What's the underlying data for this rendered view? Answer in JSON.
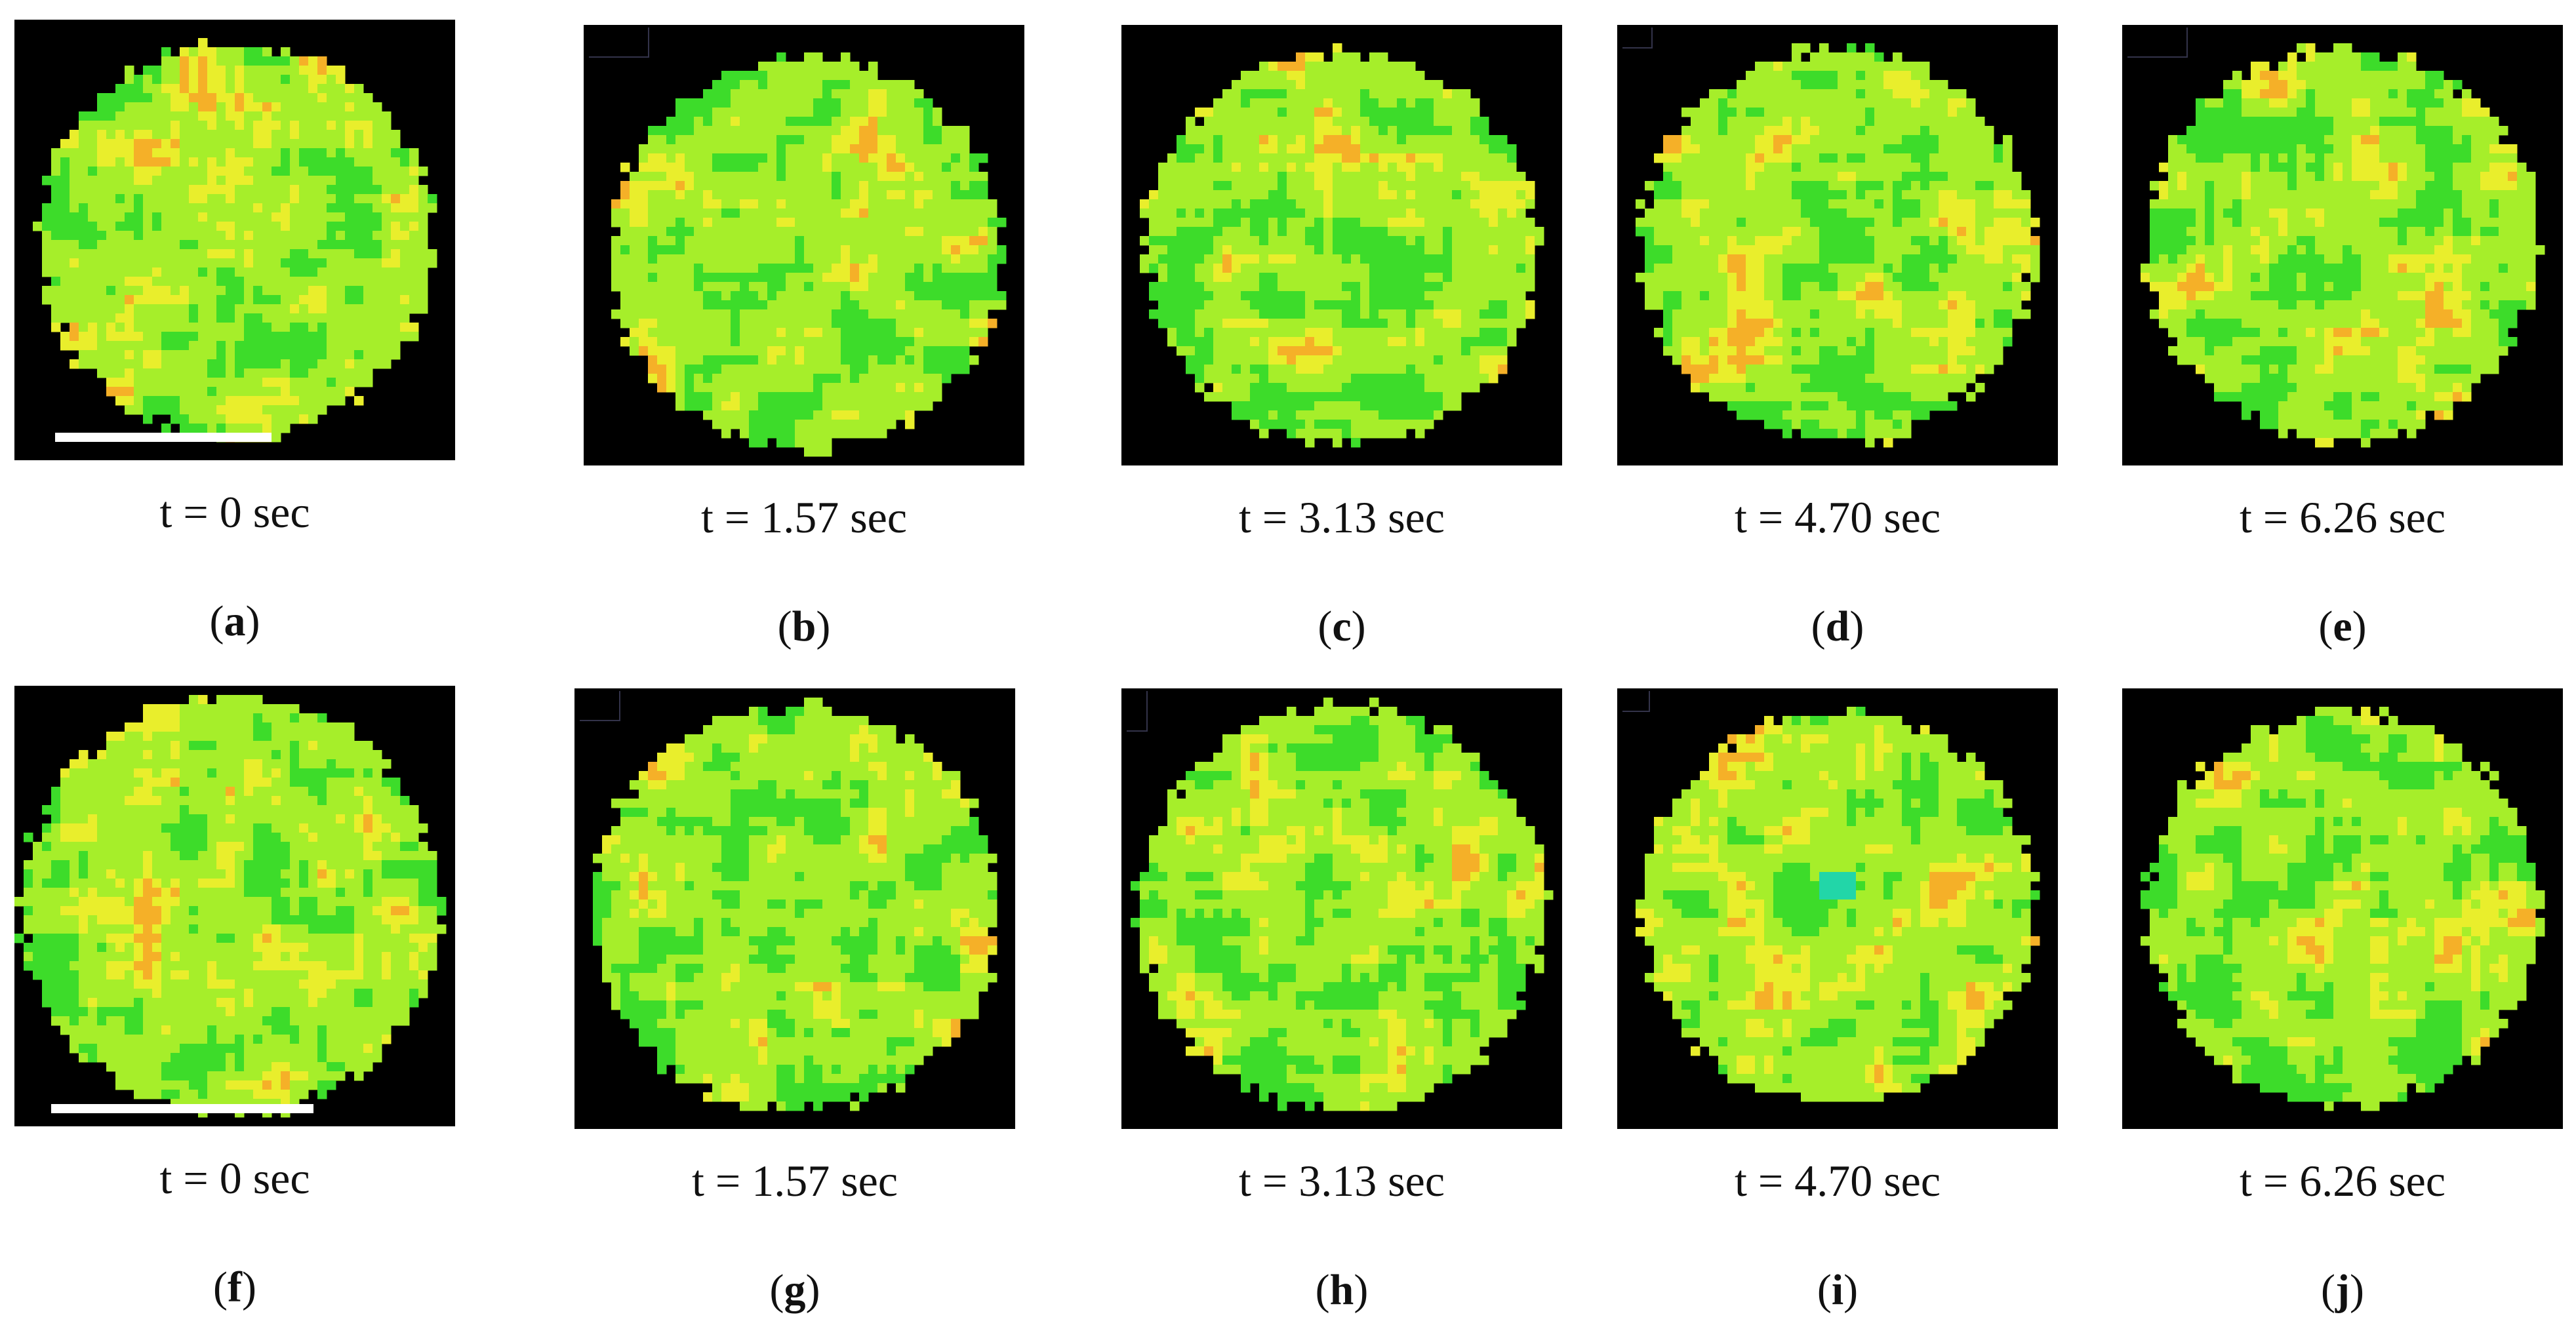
{
  "figure": {
    "panels": [
      {
        "id": "a",
        "time_label": "t = 0 sec",
        "letter": "a",
        "scale_bar": true
      },
      {
        "id": "b",
        "time_label": "t = 1.57 sec",
        "letter": "b",
        "scale_bar": false
      },
      {
        "id": "c",
        "time_label": "t = 3.13 sec",
        "letter": "c",
        "scale_bar": false
      },
      {
        "id": "d",
        "time_label": "t = 4.70 sec",
        "letter": "d",
        "scale_bar": false
      },
      {
        "id": "e",
        "time_label": "t = 6.26 sec",
        "letter": "e",
        "scale_bar": false
      },
      {
        "id": "f",
        "time_label": "t = 0 sec",
        "letter": "f",
        "scale_bar": true
      },
      {
        "id": "g",
        "time_label": "t = 1.57 sec",
        "letter": "g",
        "scale_bar": false
      },
      {
        "id": "h",
        "time_label": "t = 3.13 sec",
        "letter": "h",
        "scale_bar": false
      },
      {
        "id": "i",
        "time_label": "t = 4.70 sec",
        "letter": "i",
        "scale_bar": false
      },
      {
        "id": "j",
        "time_label": "t = 6.26 sec",
        "letter": "j",
        "scale_bar": false
      }
    ],
    "colors": {
      "background": "#000000",
      "map_green": "#3ddc2a",
      "map_yellow_green": "#a6ee2a",
      "map_yellow": "#e9ee2c",
      "map_orange": "#f5b028",
      "map_cyan": "#22d6a8",
      "scale_bar": "#ffffff"
    }
  }
}
